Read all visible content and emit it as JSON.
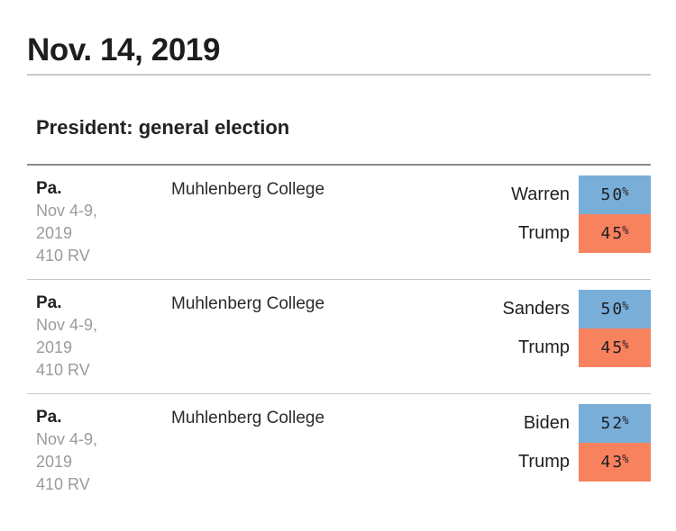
{
  "header": {
    "date_title": "Nov. 14, 2019"
  },
  "section": {
    "title": "President: general election"
  },
  "labels": {
    "percent_sign": "%"
  },
  "colors": {
    "dem_blue": "#79aed9",
    "rep_orange": "#f8815e"
  },
  "polls": [
    {
      "state": "Pa.",
      "date_line1": "Nov 4-9,",
      "date_line2": "2019",
      "sample": "410 RV",
      "pollster": "Muhlenberg College",
      "results": [
        {
          "candidate": "Warren",
          "pct": "50",
          "party": "dem"
        },
        {
          "candidate": "Trump",
          "pct": "45",
          "party": "rep"
        }
      ]
    },
    {
      "state": "Pa.",
      "date_line1": "Nov 4-9,",
      "date_line2": "2019",
      "sample": "410 RV",
      "pollster": "Muhlenberg College",
      "results": [
        {
          "candidate": "Sanders",
          "pct": "50",
          "party": "dem"
        },
        {
          "candidate": "Trump",
          "pct": "45",
          "party": "rep"
        }
      ]
    },
    {
      "state": "Pa.",
      "date_line1": "Nov 4-9,",
      "date_line2": "2019",
      "sample": "410 RV",
      "pollster": "Muhlenberg College",
      "results": [
        {
          "candidate": "Biden",
          "pct": "52",
          "party": "dem"
        },
        {
          "candidate": "Trump",
          "pct": "43",
          "party": "rep"
        }
      ]
    }
  ]
}
